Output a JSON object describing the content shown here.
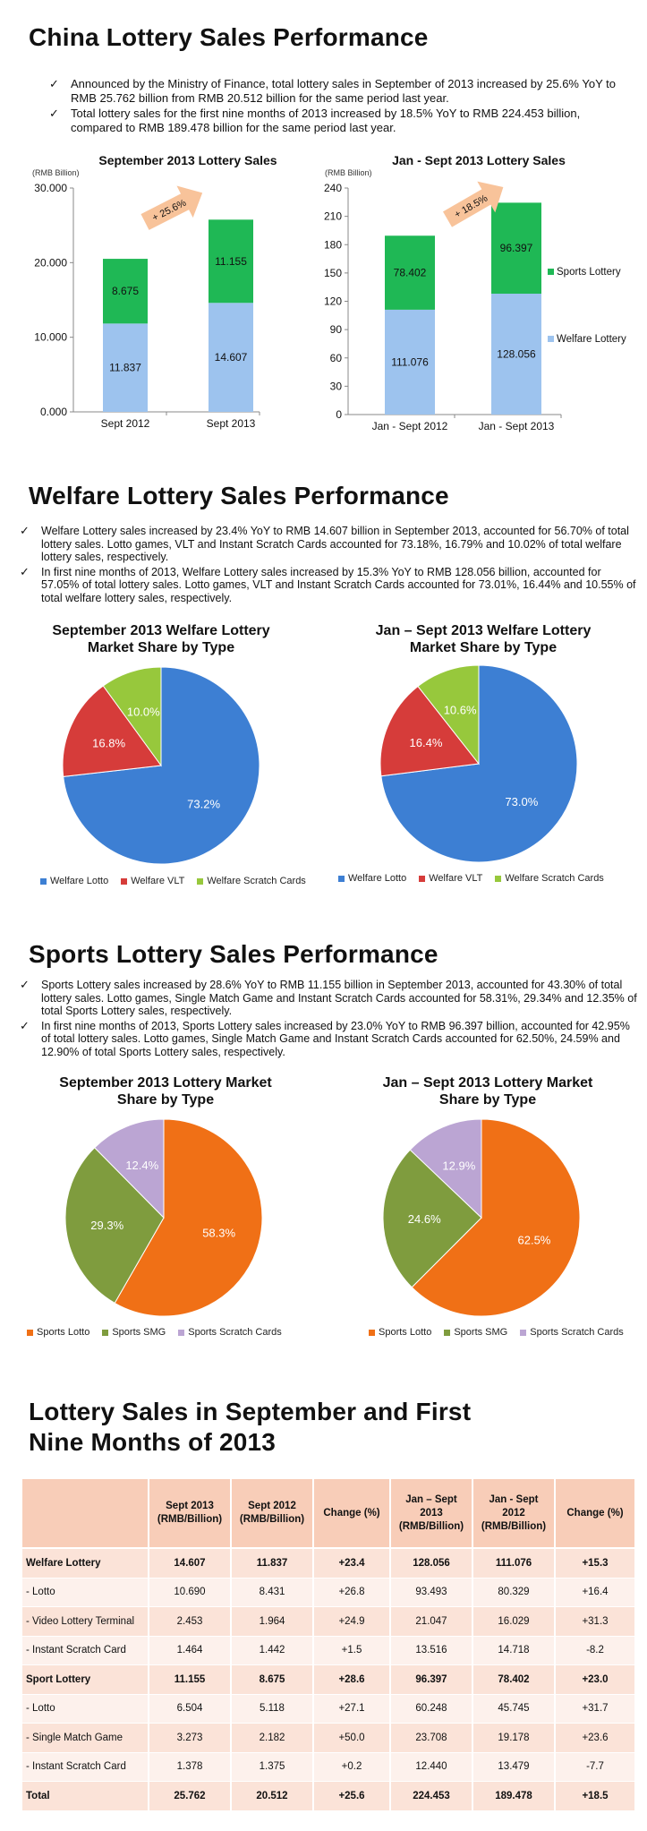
{
  "sec1": {
    "title": "China Lottery Sales Performance",
    "bullets": [
      "Announced by the Ministry of Finance, total lottery sales in September of 2013 increased by 25.6% YoY to RMB 25.762 billion from RMB 20.512 billion for the same period last year.",
      "Total lottery sales for the first nine months of 2013 increased by 18.5% YoY to RMB 224.453 billion, compared to RMB 189.478 billion for the same period last year."
    ]
  },
  "sec2": {
    "title": "Welfare Lottery Sales Performance",
    "bullets": [
      "Welfare Lottery sales increased by 23.4% YoY to RMB 14.607 billion in September 2013, accounted for 56.70% of total lottery sales. Lotto games, VLT and Instant Scratch Cards accounted for 73.18%, 16.79% and 10.02% of total welfare lottery sales, respectively.",
      "In first nine months of 2013, Welfare Lottery sales increased by 15.3% YoY to RMB 128.056 billion, accounted for 57.05% of total lottery sales. Lotto games, VLT and Instant Scratch Cards accounted for 73.01%, 16.44% and 10.55% of total welfare lottery sales, respectively."
    ]
  },
  "sec3": {
    "title": "Sports Lottery Sales Performance",
    "bullets": [
      "Sports Lottery sales increased by 28.6% YoY to RMB 11.155 billion in September 2013, accounted for 43.30% of total lottery sales. Lotto games, Single Match Game and Instant Scratch Cards accounted for 58.31%, 29.34% and 12.35% of total Sports Lottery sales, respectively.",
      "In first nine months of 2013, Sports Lottery sales increased by 23.0% YoY to RMB 96.397 billion, accounted for 42.95% of total lottery sales. Lotto games, Single Match Game and Instant Scratch Cards accounted for 62.50%, 24.59% and 12.90% of total Sports Lottery sales, respectively."
    ]
  },
  "sec4": {
    "title_line1": "Lottery Sales in September and First",
    "title_line2": "Nine Months of 2013"
  },
  "colors": {
    "welfare_bar": "#9dc3ee",
    "sports_bar": "#1fb855",
    "arrow": "#f8c39a",
    "welfare_lotto": "#3d7fd3",
    "welfare_vlt": "#d63c3a",
    "welfare_scratch": "#97c83c",
    "sports_lotto": "#f07016",
    "sports_smg": "#7f9c3e",
    "sports_scratch": "#bba5d3"
  },
  "chart_data": [
    {
      "type": "bar",
      "stacked": true,
      "title": "September 2013 Lottery Sales",
      "ylabel": "(RMB Billion)",
      "categories": [
        "Sept 2012",
        "Sept 2013"
      ],
      "series": [
        {
          "name": "Welfare Lottery",
          "values": [
            11.837,
            14.607
          ],
          "labels": [
            "11.837",
            "14.607"
          ]
        },
        {
          "name": "Sports Lottery",
          "values": [
            8.675,
            11.155
          ],
          "labels": [
            "8.675",
            "11.155"
          ]
        }
      ],
      "ylim": [
        0,
        30
      ],
      "yticks": [
        0,
        10,
        20,
        30
      ],
      "ytick_labels": [
        "0.000",
        "10.000",
        "20.000",
        "30.000"
      ],
      "annotation": "+ 25.6%"
    },
    {
      "type": "bar",
      "stacked": true,
      "title": "Jan - Sept 2013 Lottery Sales",
      "ylabel": "(RMB Billion)",
      "categories": [
        "Jan - Sept 2012",
        "Jan - Sept 2013"
      ],
      "series": [
        {
          "name": "Welfare Lottery",
          "values": [
            111.076,
            128.056
          ],
          "labels": [
            "111.076",
            "128.056"
          ]
        },
        {
          "name": "Sports Lottery",
          "values": [
            78.402,
            96.397
          ],
          "labels": [
            "78.402",
            "96.397"
          ]
        }
      ],
      "ylim": [
        0,
        240
      ],
      "yticks": [
        0,
        30,
        60,
        90,
        120,
        150,
        180,
        210,
        240
      ],
      "ytick_labels": [
        "0",
        "30",
        "60",
        "90",
        "120",
        "150",
        "180",
        "210",
        "240"
      ],
      "annotation": "+ 18.5%",
      "legend": [
        "Sports Lottery",
        "Welfare Lottery"
      ],
      "legend_position": "right"
    },
    {
      "type": "pie",
      "title_line1": "September 2013 Welfare Lottery",
      "title_line2": "Market Share by Type",
      "labels": [
        "Welfare Lotto",
        "Welfare VLT",
        "Welfare Scratch Cards"
      ],
      "values": [
        73.2,
        16.8,
        10.0
      ],
      "value_labels": [
        "73.2%",
        "16.8%",
        "10.0%"
      ],
      "legend_position": "bottom"
    },
    {
      "type": "pie",
      "title_line1": "Jan – Sept 2013 Welfare Lottery",
      "title_line2": "Market Share by Type",
      "labels": [
        "Welfare Lotto",
        "Welfare VLT",
        "Welfare Scratch Cards"
      ],
      "values": [
        73.0,
        16.4,
        10.6
      ],
      "value_labels": [
        "73.0%",
        "16.4%",
        "10.6%"
      ],
      "legend_position": "bottom"
    },
    {
      "type": "pie",
      "title_line1": "September 2013 Lottery Market",
      "title_line2": "Share by Type",
      "labels": [
        "Sports Lotto",
        "Sports SMG",
        "Sports Scratch Cards"
      ],
      "values": [
        58.3,
        29.3,
        12.4
      ],
      "value_labels": [
        "58.3%",
        "29.3%",
        "12.4%"
      ],
      "legend_position": "bottom"
    },
    {
      "type": "pie",
      "title_line1": "Jan – Sept 2013 Lottery Market",
      "title_line2": "Share by Type",
      "labels": [
        "Sports Lotto",
        "Sports SMG",
        "Sports Scratch Cards"
      ],
      "values": [
        62.5,
        24.6,
        12.9
      ],
      "value_labels": [
        "62.5%",
        "24.6%",
        "12.9%"
      ],
      "legend_position": "bottom"
    },
    {
      "type": "table",
      "headers": [
        "",
        "Sept 2013 (RMB/Billion)",
        "Sept 2012 (RMB/Billion)",
        "Change (%)",
        "Jan – Sept 2013 (RMB/Billion)",
        "Jan - Sept 2012 (RMB/Billion)",
        "Change (%)"
      ],
      "rows": [
        {
          "bold": true,
          "cells": [
            "Welfare Lottery",
            "14.607",
            "11.837",
            "+23.4",
            "128.056",
            "111.076",
            "+15.3"
          ]
        },
        {
          "bold": false,
          "cells": [
            "- Lotto",
            "10.690",
            "8.431",
            "+26.8",
            "93.493",
            "80.329",
            "+16.4"
          ]
        },
        {
          "bold": false,
          "cells": [
            "- Video Lottery Terminal",
            "2.453",
            "1.964",
            "+24.9",
            "21.047",
            "16.029",
            "+31.3"
          ]
        },
        {
          "bold": false,
          "cells": [
            "- Instant Scratch Card",
            "1.464",
            "1.442",
            "+1.5",
            "13.516",
            "14.718",
            "-8.2"
          ]
        },
        {
          "bold": true,
          "cells": [
            "Sport Lottery",
            "11.155",
            "8.675",
            "+28.6",
            "96.397",
            "78.402",
            "+23.0"
          ]
        },
        {
          "bold": false,
          "cells": [
            "- Lotto",
            "6.504",
            "5.118",
            "+27.1",
            "60.248",
            "45.745",
            "+31.7"
          ]
        },
        {
          "bold": false,
          "cells": [
            "- Single Match Game",
            "3.273",
            "2.182",
            "+50.0",
            "23.708",
            "19.178",
            "+23.6"
          ]
        },
        {
          "bold": false,
          "cells": [
            "- Instant Scratch Card",
            "1.378",
            "1.375",
            "+0.2",
            "12.440",
            "13.479",
            "-7.7"
          ]
        },
        {
          "bold": true,
          "cells": [
            "Total",
            "25.762",
            "20.512",
            "+25.6",
            "224.453",
            "189.478",
            "+18.5"
          ]
        }
      ]
    }
  ]
}
